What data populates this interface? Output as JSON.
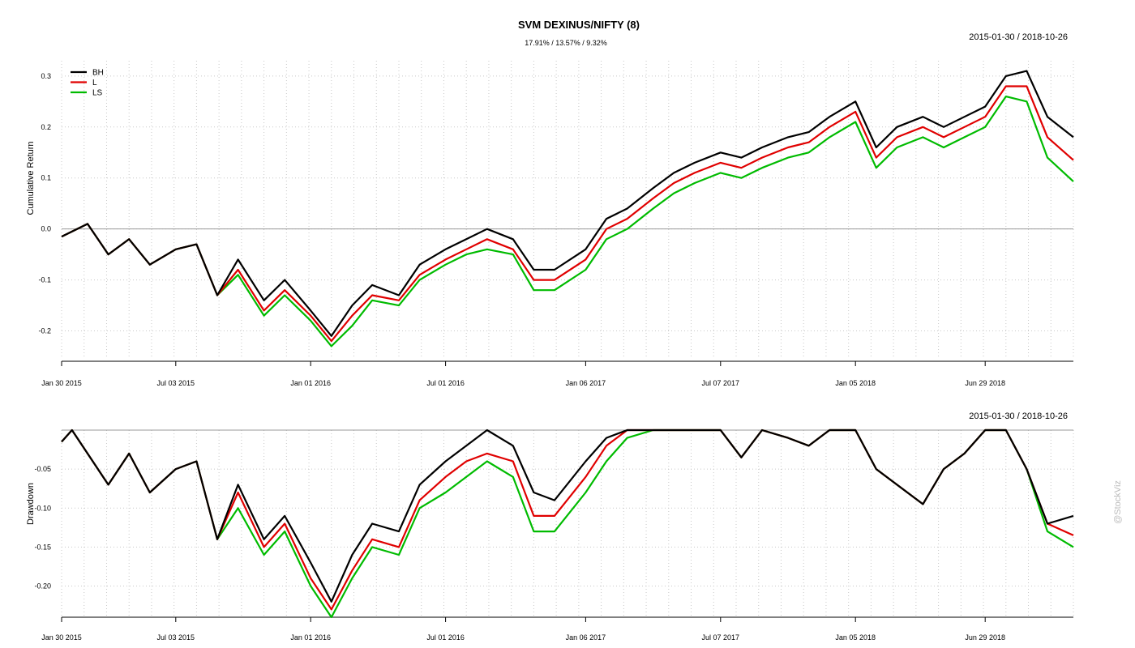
{
  "title": "SVM DEXINUS/NIFTY (8)",
  "subtitle": "17.91% / 13.57% / 9.32%",
  "watermark": "@StockViz",
  "colors": {
    "BH": "#000000",
    "L": "#e00000",
    "LS": "#00bb00"
  },
  "chart_data": [
    {
      "type": "line",
      "panel": "top",
      "date_range": "2015-01-30 / 2018-10-26",
      "ylabel": "Cumulative Return",
      "ylim": [
        -0.25,
        0.33
      ],
      "yticks": [
        -0.2,
        -0.1,
        0.0,
        0.1,
        0.2,
        0.3
      ],
      "ytick_labels": [
        "-0.2",
        "-0.1",
        "0.0",
        "0.1",
        "0.2",
        "0.3"
      ],
      "x_labels": [
        "Jan 30 2015",
        "Jul 03 2015",
        "Jan 01 2016",
        "Jul 01 2016",
        "Jan 06 2017",
        "Jul 07 2017",
        "Jan 05 2018",
        "Jun 29 2018"
      ],
      "zero_line": true,
      "grid": true,
      "legend": {
        "position": "top-left",
        "entries": [
          "BH",
          "L",
          "LS"
        ]
      },
      "x": [
        "2015-01-30",
        "2015-03-06",
        "2015-04-03",
        "2015-05-01",
        "2015-05-29",
        "2015-07-03",
        "2015-07-31",
        "2015-08-28",
        "2015-09-25",
        "2015-10-30",
        "2015-11-27",
        "2016-01-01",
        "2016-01-29",
        "2016-02-26",
        "2016-03-24",
        "2016-04-29",
        "2016-05-27",
        "2016-07-01",
        "2016-07-29",
        "2016-08-26",
        "2016-09-30",
        "2016-10-28",
        "2016-11-25",
        "2017-01-06",
        "2017-02-03",
        "2017-03-03",
        "2017-04-07",
        "2017-05-05",
        "2017-06-02",
        "2017-07-07",
        "2017-08-04",
        "2017-09-01",
        "2017-10-06",
        "2017-11-03",
        "2017-12-01",
        "2018-01-05",
        "2018-02-02",
        "2018-03-02",
        "2018-04-06",
        "2018-05-04",
        "2018-06-01",
        "2018-06-29",
        "2018-07-27",
        "2018-08-24",
        "2018-09-21",
        "2018-10-26"
      ],
      "series": [
        {
          "name": "BH",
          "values": [
            -0.015,
            0.01,
            -0.05,
            -0.02,
            -0.07,
            -0.04,
            -0.03,
            -0.13,
            -0.06,
            -0.14,
            -0.1,
            -0.16,
            -0.21,
            -0.15,
            -0.11,
            -0.13,
            -0.07,
            -0.04,
            -0.02,
            0.0,
            -0.02,
            -0.08,
            -0.08,
            -0.04,
            0.02,
            0.04,
            0.08,
            0.11,
            0.13,
            0.15,
            0.14,
            0.16,
            0.18,
            0.19,
            0.22,
            0.25,
            0.16,
            0.2,
            0.22,
            0.2,
            0.22,
            0.24,
            0.3,
            0.31,
            0.22,
            0.18
          ]
        },
        {
          "name": "L",
          "values": [
            -0.015,
            0.01,
            -0.05,
            -0.02,
            -0.07,
            -0.04,
            -0.03,
            -0.13,
            -0.08,
            -0.16,
            -0.12,
            -0.17,
            -0.22,
            -0.17,
            -0.13,
            -0.14,
            -0.09,
            -0.06,
            -0.04,
            -0.02,
            -0.04,
            -0.1,
            -0.1,
            -0.06,
            0.0,
            0.02,
            0.06,
            0.09,
            0.11,
            0.13,
            0.12,
            0.14,
            0.16,
            0.17,
            0.2,
            0.23,
            0.14,
            0.18,
            0.2,
            0.18,
            0.2,
            0.22,
            0.28,
            0.28,
            0.18,
            0.135
          ]
        },
        {
          "name": "LS",
          "values": [
            -0.015,
            0.01,
            -0.05,
            -0.02,
            -0.07,
            -0.04,
            -0.03,
            -0.13,
            -0.09,
            -0.17,
            -0.13,
            -0.18,
            -0.23,
            -0.19,
            -0.14,
            -0.15,
            -0.1,
            -0.07,
            -0.05,
            -0.04,
            -0.05,
            -0.12,
            -0.12,
            -0.08,
            -0.02,
            0.0,
            0.04,
            0.07,
            0.09,
            0.11,
            0.1,
            0.12,
            0.14,
            0.15,
            0.18,
            0.21,
            0.12,
            0.16,
            0.18,
            0.16,
            0.18,
            0.2,
            0.26,
            0.25,
            0.14,
            0.093
          ]
        }
      ]
    },
    {
      "type": "line",
      "panel": "bottom",
      "date_range": "2015-01-30 / 2018-10-26",
      "ylabel": "Drawdown",
      "ylim": [
        -0.24,
        0.0
      ],
      "yticks": [
        -0.2,
        -0.15,
        -0.1,
        -0.05
      ],
      "ytick_labels": [
        "-0.20",
        "-0.15",
        "-0.10",
        "-0.05"
      ],
      "x_labels": [
        "Jan 30 2015",
        "Jul 03 2015",
        "Jan 01 2016",
        "Jul 01 2016",
        "Jan 06 2017",
        "Jul 07 2017",
        "Jan 05 2018",
        "Jun 29 2018"
      ],
      "grid": true,
      "x": [
        "2015-01-30",
        "2015-02-13",
        "2015-03-06",
        "2015-04-03",
        "2015-05-01",
        "2015-05-29",
        "2015-07-03",
        "2015-07-31",
        "2015-08-28",
        "2015-09-25",
        "2015-10-30",
        "2015-11-27",
        "2016-01-01",
        "2016-01-29",
        "2016-02-26",
        "2016-03-24",
        "2016-04-29",
        "2016-05-27",
        "2016-07-01",
        "2016-07-29",
        "2016-08-26",
        "2016-09-30",
        "2016-10-28",
        "2016-11-25",
        "2017-01-06",
        "2017-02-03",
        "2017-03-03",
        "2017-04-07",
        "2017-05-05",
        "2017-06-02",
        "2017-07-07",
        "2017-08-04",
        "2017-09-01",
        "2017-10-06",
        "2017-11-03",
        "2017-12-01",
        "2018-01-05",
        "2018-02-02",
        "2018-03-02",
        "2018-04-06",
        "2018-05-04",
        "2018-06-01",
        "2018-06-29",
        "2018-07-27",
        "2018-08-24",
        "2018-09-21",
        "2018-10-26"
      ],
      "series": [
        {
          "name": "BH",
          "values": [
            -0.015,
            0.0,
            -0.03,
            -0.07,
            -0.03,
            -0.08,
            -0.05,
            -0.04,
            -0.14,
            -0.07,
            -0.14,
            -0.11,
            -0.17,
            -0.22,
            -0.16,
            -0.12,
            -0.13,
            -0.07,
            -0.04,
            -0.02,
            0.0,
            -0.02,
            -0.08,
            -0.09,
            -0.04,
            -0.01,
            0.0,
            0.0,
            0.0,
            0.0,
            0.0,
            -0.035,
            0.0,
            -0.01,
            -0.02,
            0.0,
            0.0,
            -0.05,
            -0.07,
            -0.095,
            -0.05,
            -0.03,
            0.0,
            0.0,
            -0.05,
            -0.12,
            -0.11
          ]
        },
        {
          "name": "L",
          "values": [
            -0.015,
            0.0,
            -0.03,
            -0.07,
            -0.03,
            -0.08,
            -0.05,
            -0.04,
            -0.14,
            -0.08,
            -0.15,
            -0.12,
            -0.19,
            -0.23,
            -0.18,
            -0.14,
            -0.15,
            -0.09,
            -0.06,
            -0.04,
            -0.03,
            -0.04,
            -0.11,
            -0.11,
            -0.06,
            -0.02,
            0.0,
            0.0,
            0.0,
            0.0,
            0.0,
            -0.035,
            0.0,
            -0.01,
            -0.02,
            0.0,
            0.0,
            -0.05,
            -0.07,
            -0.095,
            -0.05,
            -0.03,
            0.0,
            0.0,
            -0.05,
            -0.12,
            -0.135
          ]
        },
        {
          "name": "LS",
          "values": [
            -0.015,
            0.0,
            -0.03,
            -0.07,
            -0.03,
            -0.08,
            -0.05,
            -0.04,
            -0.14,
            -0.1,
            -0.16,
            -0.13,
            -0.2,
            -0.24,
            -0.19,
            -0.15,
            -0.16,
            -0.1,
            -0.08,
            -0.06,
            -0.04,
            -0.06,
            -0.13,
            -0.13,
            -0.08,
            -0.04,
            -0.01,
            0.0,
            0.0,
            0.0,
            0.0,
            -0.035,
            0.0,
            -0.01,
            -0.02,
            0.0,
            0.0,
            -0.05,
            -0.07,
            -0.095,
            -0.05,
            -0.03,
            0.0,
            0.0,
            -0.05,
            -0.13,
            -0.15
          ]
        }
      ]
    }
  ]
}
